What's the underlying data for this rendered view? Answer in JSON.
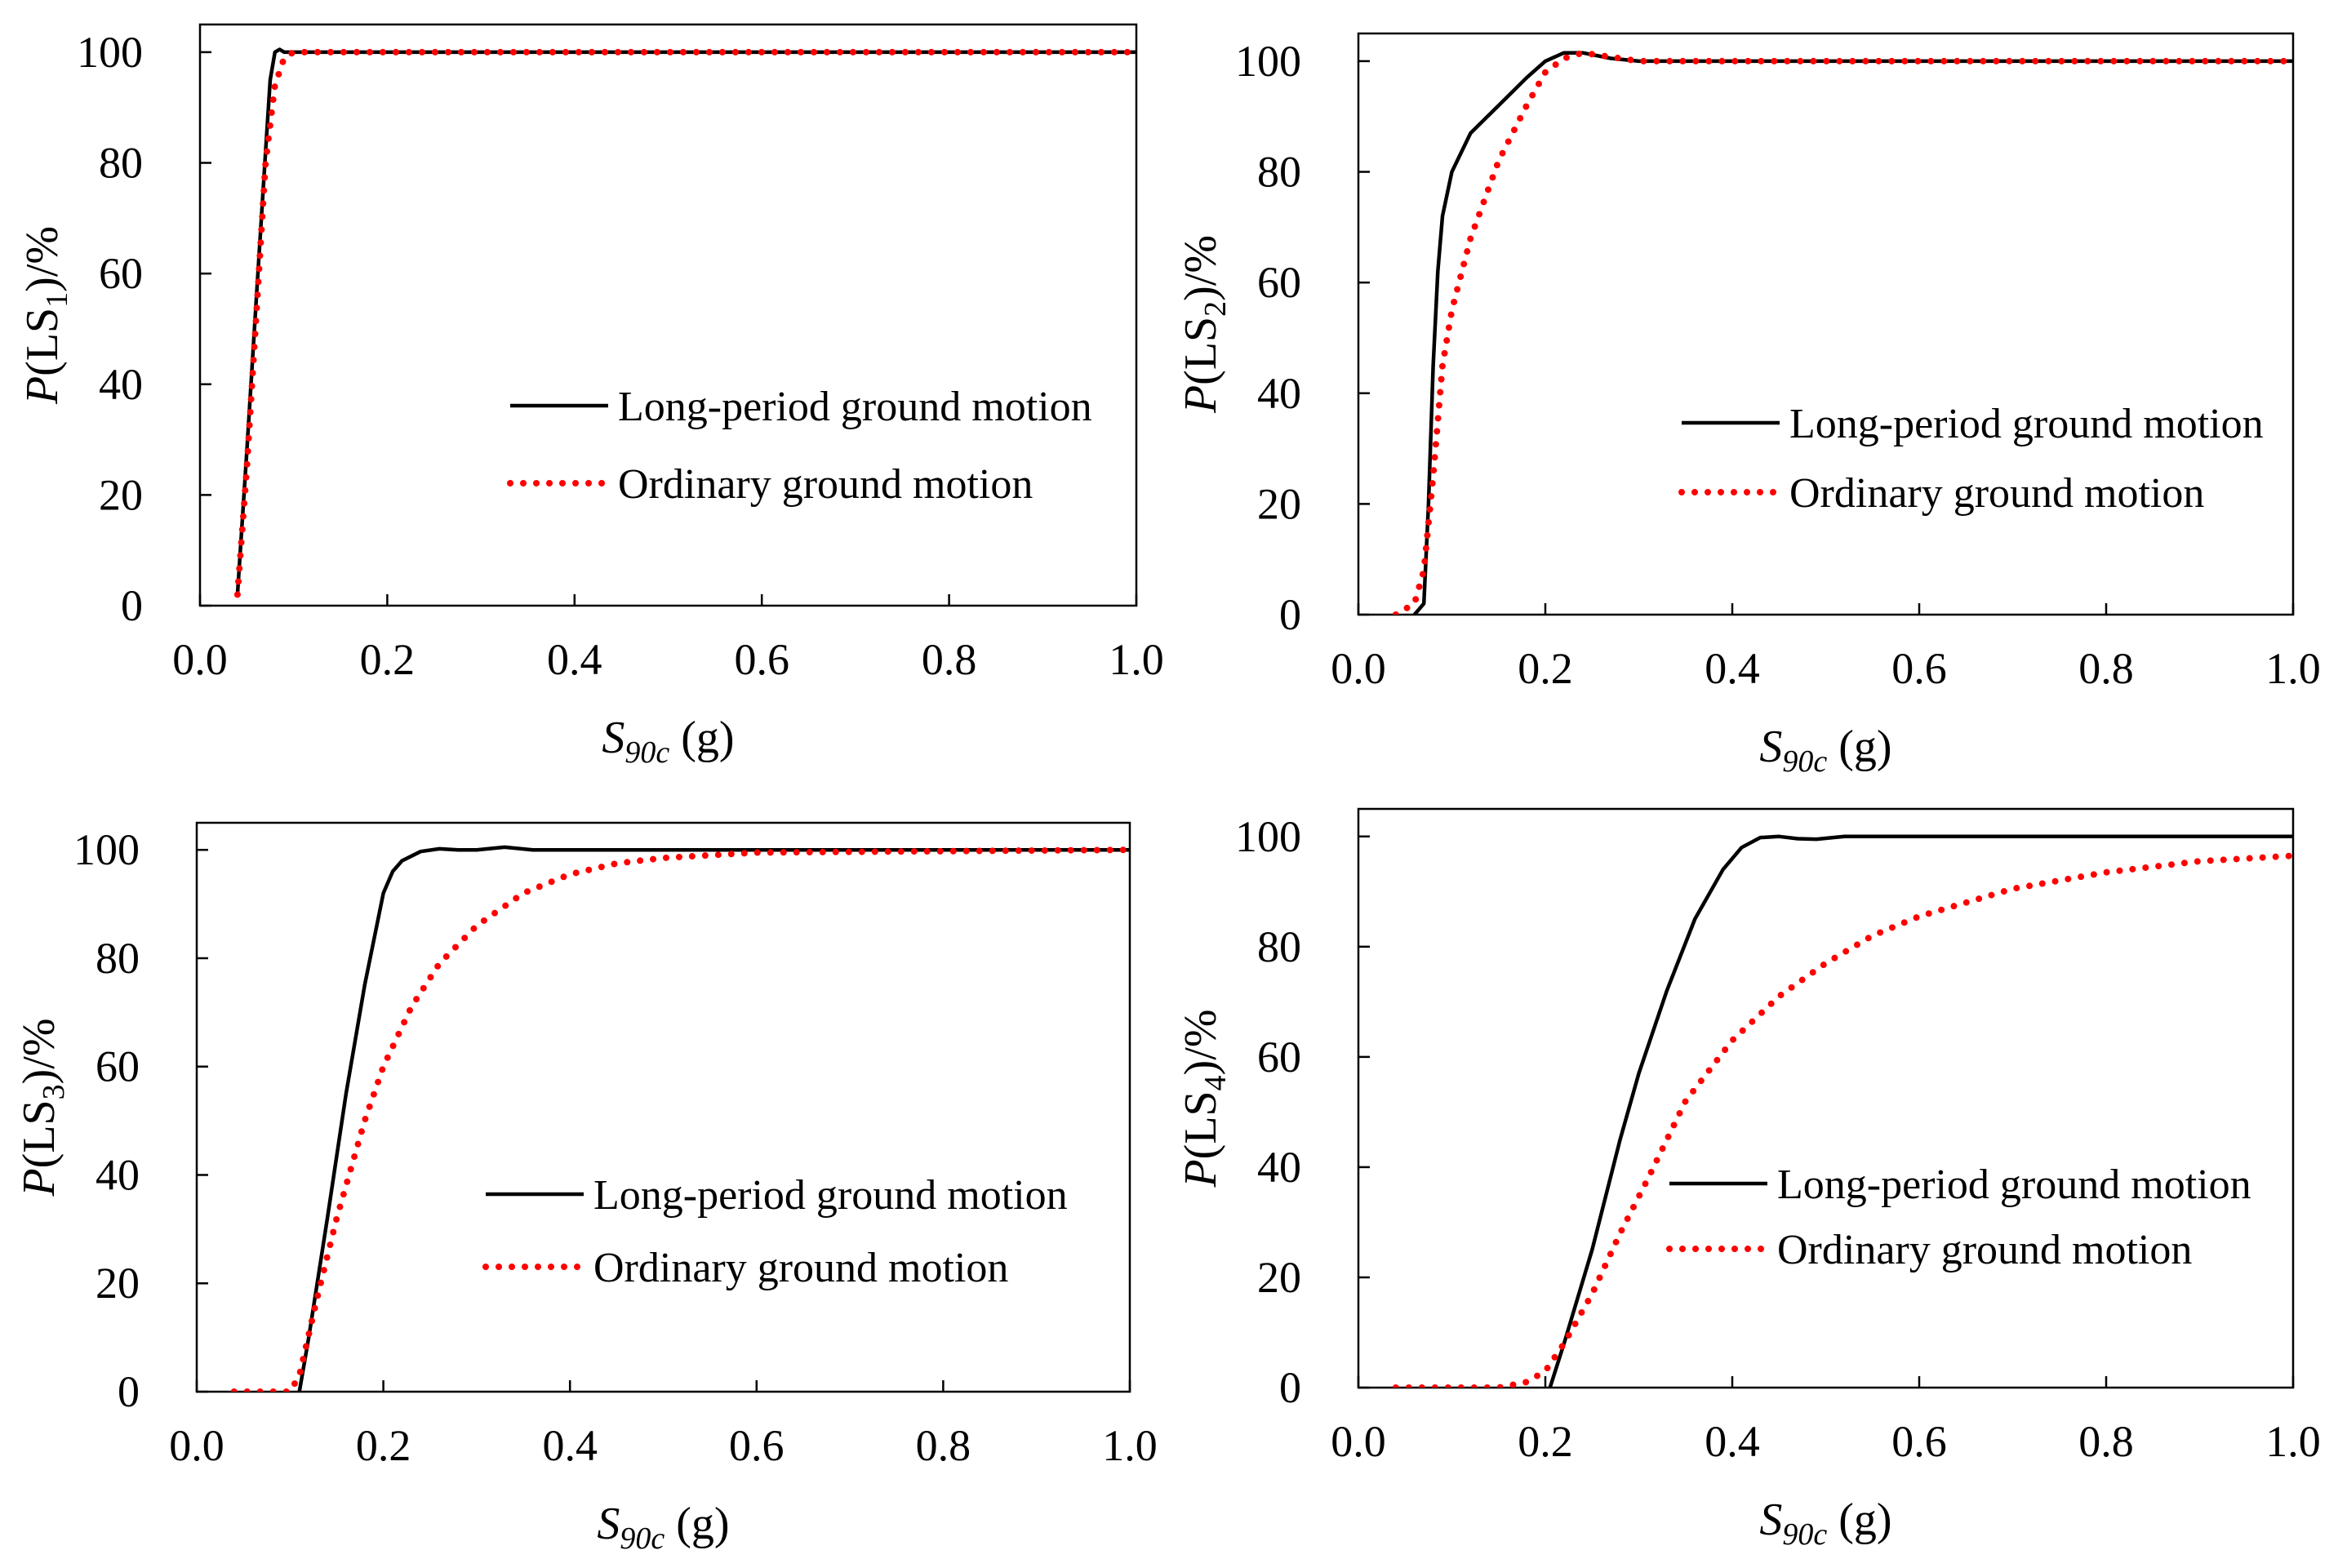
{
  "chart_data": [
    {
      "type": "line",
      "xlabel_main": "S",
      "xlabel_sub": "90c",
      "xlabel_unit": " (g)",
      "ylabel_prefix": "P",
      "ylabel_open": "(LS",
      "ylabel_sub": "1",
      "ylabel_close": ")/%",
      "xlim": [
        0,
        1
      ],
      "ylim": [
        0,
        105
      ],
      "xticks": [
        "0.0",
        "0.2",
        "0.4",
        "0.6",
        "0.8",
        "1.0"
      ],
      "yticks": [
        "0",
        "20",
        "40",
        "60",
        "80",
        "100"
      ],
      "legend_position": "center-right",
      "series": [
        {
          "name": "Long-period ground motion",
          "color": "#000000",
          "style": "solid",
          "x": [
            0.04,
            0.05,
            0.06,
            0.07,
            0.075,
            0.08,
            0.085,
            0.09,
            0.1,
            1.0
          ],
          "y": [
            2,
            28,
            55,
            82,
            95,
            100,
            100.5,
            100,
            100,
            100
          ]
        },
        {
          "name": "Ordinary ground motion",
          "color": "#ff0000",
          "style": "dotted",
          "x": [
            0.04,
            0.05,
            0.06,
            0.07,
            0.08,
            0.09,
            0.1,
            1.0
          ],
          "y": [
            2,
            25,
            52,
            80,
            94,
            99,
            100,
            100
          ]
        }
      ]
    },
    {
      "type": "line",
      "xlabel_main": "S",
      "xlabel_sub": "90c",
      "xlabel_unit": " (g)",
      "ylabel_prefix": "P",
      "ylabel_open": "(LS",
      "ylabel_sub": "2",
      "ylabel_close": ")/%",
      "xlim": [
        0,
        1
      ],
      "ylim": [
        0,
        105
      ],
      "xticks": [
        "0.0",
        "0.2",
        "0.4",
        "0.6",
        "0.8",
        "1.0"
      ],
      "yticks": [
        "0",
        "20",
        "40",
        "60",
        "80",
        "100"
      ],
      "legend_position": "center-right",
      "series": [
        {
          "name": "Long-period ground motion",
          "color": "#000000",
          "style": "solid",
          "x": [
            0.06,
            0.07,
            0.075,
            0.08,
            0.085,
            0.09,
            0.1,
            0.12,
            0.15,
            0.18,
            0.2,
            0.22,
            0.24,
            0.27,
            0.3,
            1.0
          ],
          "y": [
            0,
            2,
            20,
            45,
            62,
            72,
            80,
            87,
            92,
            97,
            100,
            101.5,
            101.5,
            100.5,
            100,
            100
          ]
        },
        {
          "name": "Ordinary ground motion",
          "color": "#ff0000",
          "style": "dotted",
          "x": [
            0.04,
            0.06,
            0.07,
            0.08,
            0.09,
            0.1,
            0.12,
            0.15,
            0.18,
            0.2,
            0.22,
            0.24,
            0.26,
            0.3,
            1.0
          ],
          "y": [
            0,
            2,
            8,
            25,
            45,
            55,
            68,
            82,
            92,
            98,
            100.5,
            101.5,
            101,
            100,
            100
          ]
        }
      ]
    },
    {
      "type": "line",
      "xlabel_main": "S",
      "xlabel_sub": "90c",
      "xlabel_unit": " (g)",
      "ylabel_prefix": "P",
      "ylabel_open": "(LS",
      "ylabel_sub": "3",
      "ylabel_close": ")/%",
      "xlim": [
        0,
        1
      ],
      "ylim": [
        0,
        105
      ],
      "xticks": [
        "0.0",
        "0.2",
        "0.4",
        "0.6",
        "0.8",
        "1.0"
      ],
      "yticks": [
        "0",
        "20",
        "40",
        "60",
        "80",
        "100"
      ],
      "legend_position": "bottom-right",
      "series": [
        {
          "name": "Long-period ground motion",
          "color": "#000000",
          "style": "solid",
          "x": [
            0.11,
            0.12,
            0.14,
            0.16,
            0.18,
            0.2,
            0.21,
            0.22,
            0.24,
            0.26,
            0.28,
            0.3,
            0.33,
            0.36,
            0.4,
            1.0
          ],
          "y": [
            0,
            10,
            32,
            55,
            75,
            92,
            96,
            98,
            99.7,
            100.2,
            100,
            100,
            100.5,
            100,
            100,
            100
          ]
        },
        {
          "name": "Ordinary ground motion",
          "color": "#ff0000",
          "style": "dotted",
          "x": [
            0.04,
            0.1,
            0.11,
            0.13,
            0.15,
            0.18,
            0.2,
            0.23,
            0.26,
            0.3,
            0.35,
            0.4,
            0.45,
            0.5,
            0.6,
            1.0
          ],
          "y": [
            0,
            0,
            3,
            18,
            32,
            50,
            60,
            71,
            79,
            86,
            92,
            95.5,
            97.5,
            98.5,
            99.5,
            100
          ]
        }
      ]
    },
    {
      "type": "line",
      "xlabel_main": "S",
      "xlabel_sub": "90c",
      "xlabel_unit": " (g)",
      "ylabel_prefix": "P",
      "ylabel_open": "(LS",
      "ylabel_sub": "4",
      "ylabel_close": ")/%",
      "xlim": [
        0,
        1
      ],
      "ylim": [
        0,
        105
      ],
      "xticks": [
        "0.0",
        "0.2",
        "0.4",
        "0.6",
        "0.8",
        "1.0"
      ],
      "yticks": [
        "0",
        "20",
        "40",
        "60",
        "80",
        "100"
      ],
      "legend_position": "bottom-right",
      "series": [
        {
          "name": "Long-period ground motion",
          "color": "#000000",
          "style": "solid",
          "x": [
            0.205,
            0.22,
            0.25,
            0.28,
            0.3,
            0.33,
            0.36,
            0.39,
            0.41,
            0.43,
            0.45,
            0.47,
            0.49,
            0.52,
            0.6,
            1.0
          ],
          "y": [
            0,
            8,
            25,
            45,
            57,
            72,
            85,
            94,
            98,
            99.8,
            100,
            99.6,
            99.5,
            100,
            100,
            100
          ]
        },
        {
          "name": "Ordinary ground motion",
          "color": "#ff0000",
          "style": "dotted",
          "x": [
            0.04,
            0.15,
            0.18,
            0.2,
            0.22,
            0.25,
            0.28,
            0.31,
            0.35,
            0.4,
            0.45,
            0.5,
            0.55,
            0.6,
            0.7,
            0.8,
            0.9,
            1.0
          ],
          "y": [
            0,
            0,
            1,
            3,
            8,
            17,
            28,
            38,
            52,
            63,
            71,
            77,
            82,
            85.5,
            90.5,
            93.5,
            95.5,
            96.5
          ]
        }
      ]
    }
  ]
}
